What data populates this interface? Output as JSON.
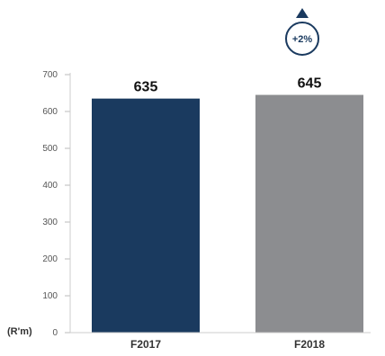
{
  "chart_data": {
    "type": "bar",
    "categories": [
      "F2017",
      "F2018"
    ],
    "values": [
      635,
      645
    ],
    "data_labels": [
      "635",
      "645"
    ],
    "unit_label": "(R'm)",
    "yticks": [
      0,
      100,
      200,
      300,
      400,
      500,
      600,
      700
    ],
    "ylim": [
      0,
      700
    ],
    "colors": [
      "#1a3a5f",
      "#8c8d90"
    ],
    "grid": false,
    "annotation": {
      "text": "+2%",
      "color": "#1a3a5f",
      "icon": "up-triangle-icon"
    }
  }
}
